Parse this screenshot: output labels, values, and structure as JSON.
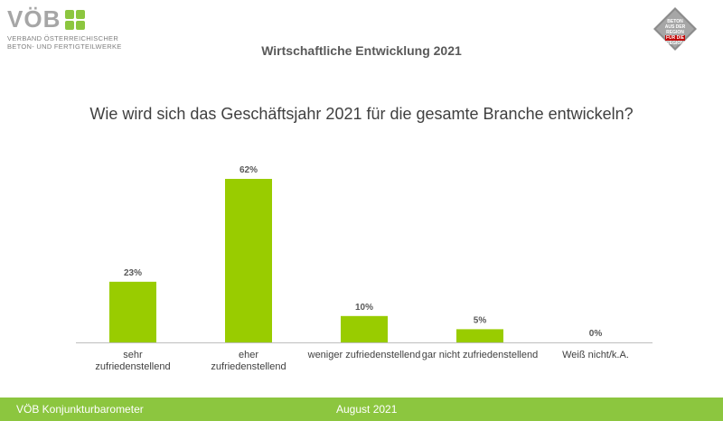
{
  "logo": {
    "wordmark": "VÖB",
    "line1": "VERBAND ÖSTERREICHISCHER",
    "line2": "BETON- UND FERTIGTEILWERKE"
  },
  "badge": {
    "line1": "BETON",
    "line2": "AUS DER",
    "line3": "REGION",
    "line4": "FÜR DIE",
    "line5": "REGION"
  },
  "header": {
    "title": "Wirtschaftliche Entwicklung 2021"
  },
  "question": "Wie wird sich das Geschäftsjahr 2021 für die gesamte Branche entwickeln?",
  "colors": {
    "bar": "#99cc00",
    "footer": "#8cc63f",
    "axis": "#bfbfbf",
    "badge": "#c00000"
  },
  "chart_data": {
    "type": "bar",
    "categories": [
      [
        "sehr",
        "zufriedenstellend"
      ],
      [
        "eher",
        "zufriedenstellend"
      ],
      [
        "weniger zufriedenstellend"
      ],
      [
        "gar nicht zufriedenstellend"
      ],
      [
        "Weiß nicht/k.A."
      ]
    ],
    "values": [
      23,
      62,
      10,
      5,
      0
    ],
    "value_labels": [
      "23%",
      "62%",
      "10%",
      "5%",
      "0%"
    ],
    "unit": "%",
    "ylim": [
      0,
      62
    ],
    "grid": false,
    "legend": "none"
  },
  "footer": {
    "left": "VÖB Konjunkturbarometer",
    "right": "August 2021"
  }
}
